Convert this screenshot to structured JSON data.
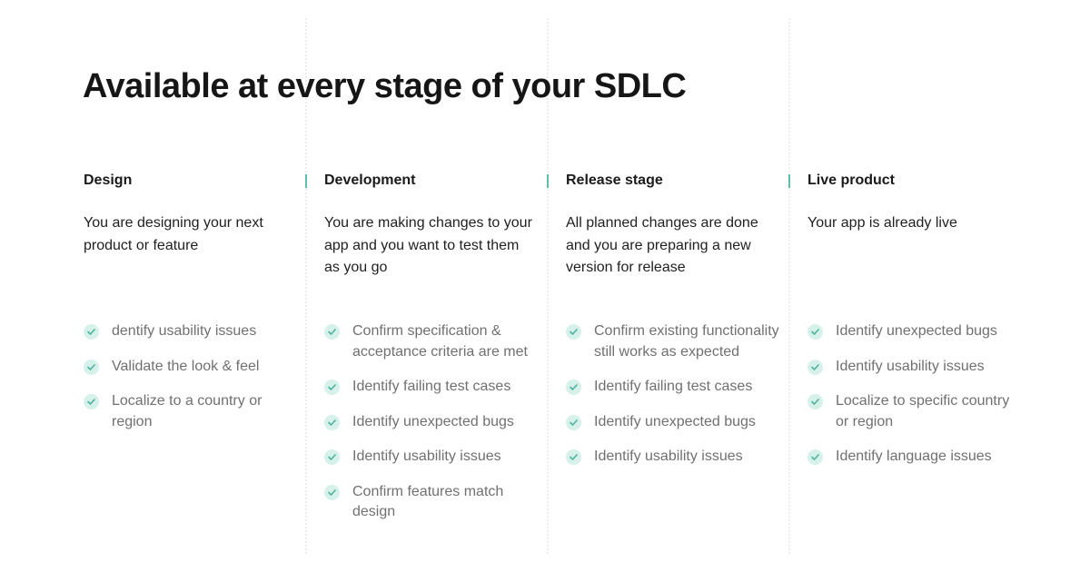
{
  "title": "Available at every stage of your SDLC",
  "colors": {
    "accent": "#5cbfae",
    "check_bg": "#d6f0ea",
    "check": "#4fb39f"
  },
  "columns": [
    {
      "heading": "Design",
      "description": "You are designing your next product or feature",
      "items": [
        "dentify usability issues",
        "Validate the look & feel",
        "Localize to a country or region"
      ]
    },
    {
      "heading": "Development",
      "description": "You are making changes to your app and you want to test them as you go",
      "items": [
        "Confirm specification & acceptance criteria are met",
        "Identify failing test cases",
        "Identify unexpected bugs",
        "Identify usability issues",
        "Confirm features match design"
      ]
    },
    {
      "heading": "Release stage",
      "description": "All planned changes are done and you are preparing a new version for release",
      "items": [
        "Confirm existing functionality still works as expected",
        "Identify failing test cases",
        "Identify unexpected bugs",
        "Identify usability issues"
      ]
    },
    {
      "heading": "Live product",
      "description": "Your app is already live",
      "items": [
        "Identify unexpected bugs",
        "Identify usability issues",
        "Localize to specific country or region",
        "Identify language issues"
      ]
    }
  ]
}
